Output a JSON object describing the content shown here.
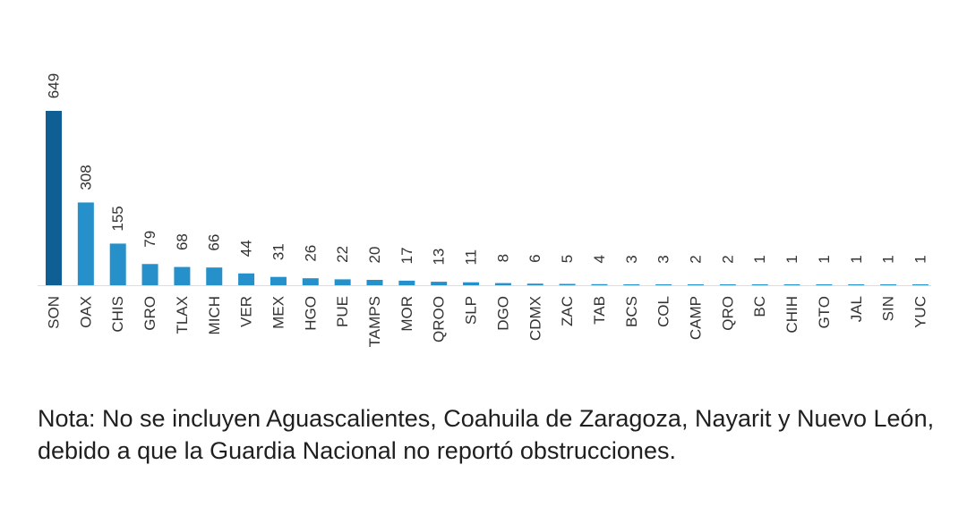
{
  "chart_data": {
    "type": "bar",
    "title": "",
    "xlabel": "",
    "ylabel": "",
    "ylim": [
      0,
      649
    ],
    "grid": false,
    "legend": "none",
    "categories": [
      "SON",
      "OAX",
      "CHIS",
      "GRO",
      "TLAX",
      "MICH",
      "VER",
      "MEX",
      "HGO",
      "PUE",
      "TAMPS",
      "MOR",
      "QROO",
      "SLP",
      "DGO",
      "CDMX",
      "ZAC",
      "TAB",
      "BCS",
      "COL",
      "CAMP",
      "QRO",
      "BC",
      "CHIH",
      "GTO",
      "JAL",
      "SIN",
      "YUC"
    ],
    "values": [
      649,
      308,
      155,
      79,
      68,
      66,
      44,
      31,
      26,
      22,
      20,
      17,
      13,
      11,
      8,
      6,
      5,
      4,
      3,
      3,
      2,
      2,
      1,
      1,
      1,
      1,
      1,
      1
    ],
    "colors": {
      "max_bar": "#0f5f94",
      "bar": "#2590c9",
      "baseline": "#dddddd"
    }
  },
  "note": {
    "text": "Nota: No se incluyen Aguascalientes, Coahuila de Zaragoza, Nayarit y Nuevo León, debido a que la Guardia Nacional no reportó obstrucciones."
  }
}
